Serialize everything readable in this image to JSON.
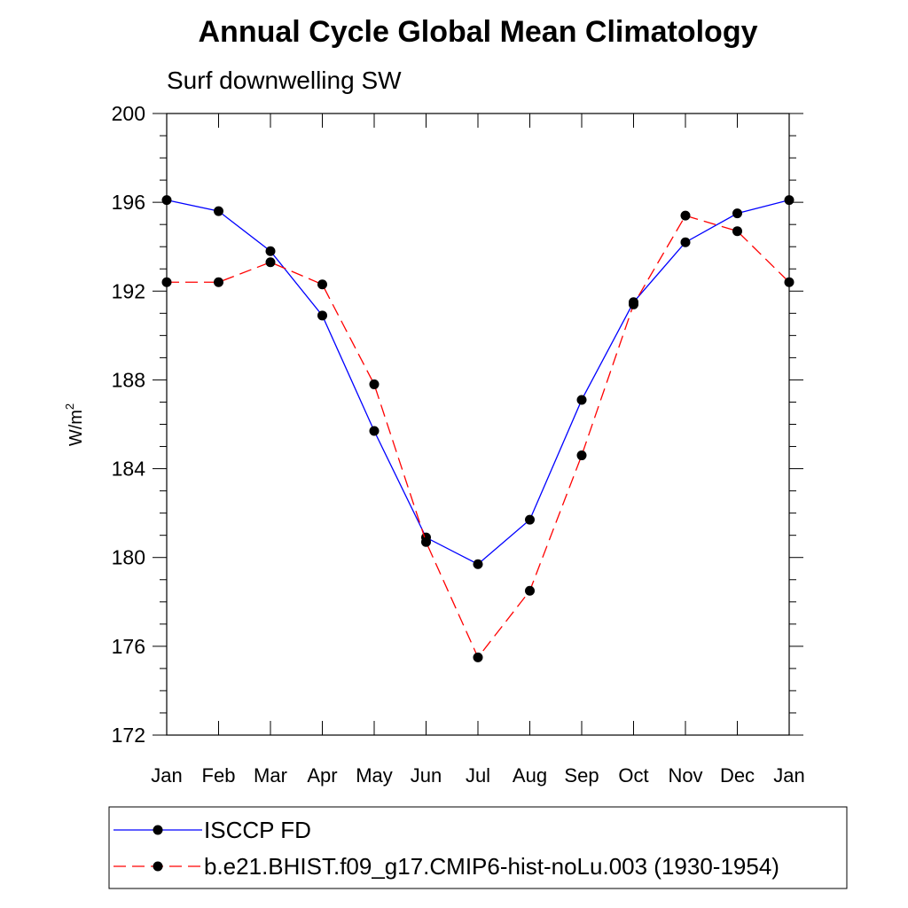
{
  "chart_data": {
    "type": "line",
    "title": "Annual Cycle Global Mean Climatology",
    "subtitle": "Surf downwelling SW",
    "ylabel": "W/m",
    "ylabel_sup": "2",
    "ylim": [
      172,
      200
    ],
    "yticks": [
      "172",
      "176",
      "180",
      "184",
      "188",
      "192",
      "196",
      "200"
    ],
    "categories": [
      "Jan",
      "Feb",
      "Mar",
      "Apr",
      "May",
      "Jun",
      "Jul",
      "Aug",
      "Sep",
      "Oct",
      "Nov",
      "Dec",
      "Jan"
    ],
    "grid": false,
    "legend_position": "bottom",
    "series": [
      {
        "name": "ISCCP FD",
        "color": "#0000ff",
        "line_style": "solid",
        "marker": "filled-circle",
        "values": [
          196.1,
          195.6,
          193.8,
          190.9,
          185.7,
          180.9,
          179.7,
          181.7,
          187.1,
          191.5,
          194.2,
          195.5,
          196.1
        ]
      },
      {
        "name": "b.e21.BHIST.f09_g17.CMIP6-hist-noLu.003 (1930-1954)",
        "color": "#ff0000",
        "line_style": "dashed",
        "marker": "filled-circle",
        "values": [
          192.4,
          192.4,
          193.3,
          192.3,
          187.8,
          180.7,
          175.5,
          178.5,
          184.6,
          191.4,
          195.4,
          194.7,
          192.4
        ]
      }
    ]
  }
}
